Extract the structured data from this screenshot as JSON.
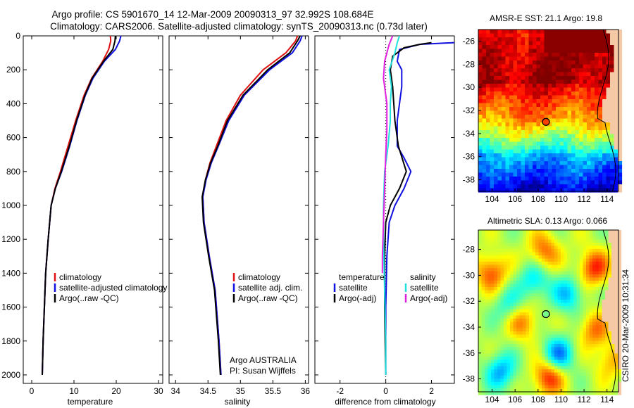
{
  "header": {
    "title_line1": "Argo profile: CS 5901670_14 12-Mar-2009 20090313_97 32.992S 108.684E",
    "title_line2": "Climatology: CARS2006. Satellite-adjusted climatology: synTS_20090313.nc (0.73d later)"
  },
  "footer_credit": "CSIRO 20-Mar-2009 10:31:34",
  "colors": {
    "climatology": "#e01010",
    "satellite": "#1010e0",
    "argo": "#000000",
    "sal_satellite": "#20e0e0",
    "sal_argo": "#e020e0"
  },
  "chart_data": [
    {
      "type": "line",
      "id": "temperature",
      "xlabel": "temperature",
      "xlim": [
        -2,
        31
      ],
      "ylim": [
        0,
        2050
      ],
      "xticks": [
        0,
        10,
        20,
        30
      ],
      "yticks": [
        0,
        200,
        400,
        600,
        800,
        1000,
        1200,
        1400,
        1600,
        1800,
        2000
      ],
      "legend": [
        "climatology",
        "satellite-adjusted climatology",
        "Argo(..raw -QC)"
      ],
      "series": [
        {
          "name": "climatology",
          "color": "climatology",
          "x": [
            18.6,
            18.7,
            18.2,
            16.8,
            14.2,
            12.4,
            10.4,
            8.6,
            6.8,
            5.5,
            4.6,
            3.9,
            3.3,
            2.7,
            2.5
          ],
          "y": [
            0,
            30,
            80,
            150,
            250,
            350,
            500,
            650,
            800,
            900,
            1000,
            1200,
            1400,
            1800,
            2000
          ]
        },
        {
          "name": "satellite-adjusted climatology",
          "color": "satellite",
          "x": [
            21.1,
            20.8,
            19.8,
            17.2,
            14.5,
            12.7,
            10.7,
            9.0,
            7.1,
            5.6,
            4.6,
            3.9,
            3.3,
            2.7,
            2.5
          ],
          "y": [
            0,
            30,
            80,
            150,
            250,
            350,
            500,
            650,
            800,
            900,
            1000,
            1200,
            1400,
            1800,
            2000
          ]
        },
        {
          "name": "Argo(..raw -QC)",
          "color": "argo",
          "x": [
            19.8,
            19.7,
            19.2,
            17.0,
            14.3,
            12.6,
            10.6,
            8.9,
            7.0,
            5.6,
            4.6,
            3.9,
            3.3,
            2.7,
            2.5
          ],
          "y": [
            0,
            30,
            80,
            150,
            250,
            350,
            500,
            650,
            800,
            900,
            1000,
            1200,
            1400,
            1800,
            2000
          ]
        }
      ]
    },
    {
      "type": "line",
      "id": "salinity",
      "xlabel": "salinity",
      "xlim": [
        33.9,
        36.05
      ],
      "ylim": [
        0,
        2050
      ],
      "xticks": [
        34,
        34.5,
        35,
        35.5,
        36
      ],
      "legend": [
        "climatology",
        "satellite adj. clim.",
        "Argo(..raw -QC)"
      ],
      "annotation": [
        "Argo AUSTRALIA",
        "PI: Susan Wijffels"
      ],
      "series": [
        {
          "name": "climatology",
          "color": "climatology",
          "x": [
            35.88,
            35.85,
            35.7,
            35.35,
            35.0,
            34.78,
            34.63,
            34.53,
            34.46,
            34.42,
            34.44,
            34.52,
            34.61,
            34.67,
            34.7
          ],
          "y": [
            0,
            30,
            100,
            200,
            350,
            500,
            650,
            750,
            850,
            950,
            1100,
            1300,
            1500,
            1800,
            2000
          ]
        },
        {
          "name": "satellite adj. clim.",
          "color": "satellite",
          "x": [
            35.95,
            35.92,
            35.8,
            35.45,
            35.06,
            34.82,
            34.66,
            34.55,
            34.47,
            34.42,
            34.44,
            34.52,
            34.61,
            34.67,
            34.7
          ],
          "y": [
            0,
            30,
            100,
            200,
            350,
            500,
            650,
            750,
            850,
            950,
            1100,
            1300,
            1500,
            1800,
            2000
          ]
        },
        {
          "name": "Argo(..raw -QC)",
          "color": "argo",
          "x": [
            35.92,
            35.88,
            35.76,
            35.42,
            35.04,
            34.8,
            34.65,
            34.54,
            34.46,
            34.41,
            34.43,
            34.51,
            34.6,
            34.66,
            34.69
          ],
          "y": [
            0,
            30,
            100,
            200,
            350,
            500,
            650,
            750,
            850,
            950,
            1100,
            1300,
            1500,
            1800,
            2000
          ]
        }
      ]
    },
    {
      "type": "line",
      "id": "difference",
      "xlabel": "difference from climatology",
      "xlim": [
        -3.1,
        3
      ],
      "ylim": [
        0,
        2050
      ],
      "xticks": [
        -2,
        0,
        2
      ],
      "legend_columns": [
        {
          "header": "temperature",
          "items": [
            "satellite",
            "Argo(-adj)"
          ]
        },
        {
          "header": "salinity",
          "items": [
            "satellite",
            "Argo(-adj)"
          ]
        }
      ],
      "series": [
        {
          "name": "temperature satellite",
          "color": "satellite",
          "x": [
            3.0,
            1.5,
            0.6,
            0.5,
            0.7,
            0.7,
            0.6,
            0.5,
            0.5,
            0.8,
            1.1,
            0.8,
            0.4,
            0.15,
            0.05,
            0.0,
            0.0
          ],
          "y": [
            40,
            50,
            80,
            150,
            200,
            300,
            400,
            500,
            650,
            720,
            800,
            900,
            1000,
            1100,
            1300,
            1600,
            2000
          ]
        },
        {
          "name": "temperature Argo(-adj)",
          "color": "argo",
          "x": [
            2.0,
            1.5,
            0.8,
            0.3,
            0.2,
            0.3,
            0.35,
            0.4,
            0.55,
            0.9,
            0.6,
            0.2,
            0.0,
            -0.05,
            -0.05,
            0.0
          ],
          "y": [
            40,
            50,
            70,
            120,
            200,
            300,
            400,
            500,
            650,
            800,
            900,
            1000,
            1100,
            1300,
            1600,
            2000
          ]
        },
        {
          "name": "salinity satellite",
          "color": "sal_satellite",
          "x": [
            0.6,
            0.5,
            0.4,
            0.15,
            0.25,
            0.2,
            0.2,
            0.1,
            -0.05,
            -0.1,
            -0.1,
            -0.05,
            0.0,
            0.0
          ],
          "y": [
            0,
            40,
            100,
            200,
            300,
            400,
            500,
            650,
            800,
            1000,
            1200,
            1500,
            1800,
            2000
          ]
        },
        {
          "name": "salinity Argo(-adj)",
          "color": "sal_argo",
          "x": [
            0.3,
            0.15,
            -0.05,
            -0.1,
            0.05,
            0.05,
            0.0,
            -0.05,
            -0.1,
            -0.15,
            -0.15
          ],
          "y": [
            0,
            50,
            150,
            250,
            400,
            550,
            700,
            900,
            1100,
            1300,
            1400
          ]
        }
      ]
    },
    {
      "type": "heatmap",
      "id": "sst_map",
      "title": "AMSR-E SST: 21.1  Argo: 19.8",
      "xlim": [
        102.8,
        115
      ],
      "ylim": [
        -39,
        -25
      ],
      "xticks": [
        104,
        106,
        108,
        110,
        112,
        114
      ],
      "yticks": [
        -26,
        -28,
        -30,
        -32,
        -34,
        -36,
        -38
      ],
      "marker": {
        "lon": 108.684,
        "lat": -32.992
      }
    },
    {
      "type": "heatmap",
      "id": "sla_map",
      "title": "Altimetric SLA: 0.13  Argo: 0.066",
      "xlim": [
        102.8,
        115
      ],
      "ylim": [
        -39,
        -26.5
      ],
      "xticks": [
        104,
        106,
        108,
        110,
        112,
        114
      ],
      "yticks": [
        -28,
        -30,
        -32,
        -34,
        -36,
        -38
      ],
      "marker": {
        "lon": 108.684,
        "lat": -32.992
      }
    }
  ]
}
